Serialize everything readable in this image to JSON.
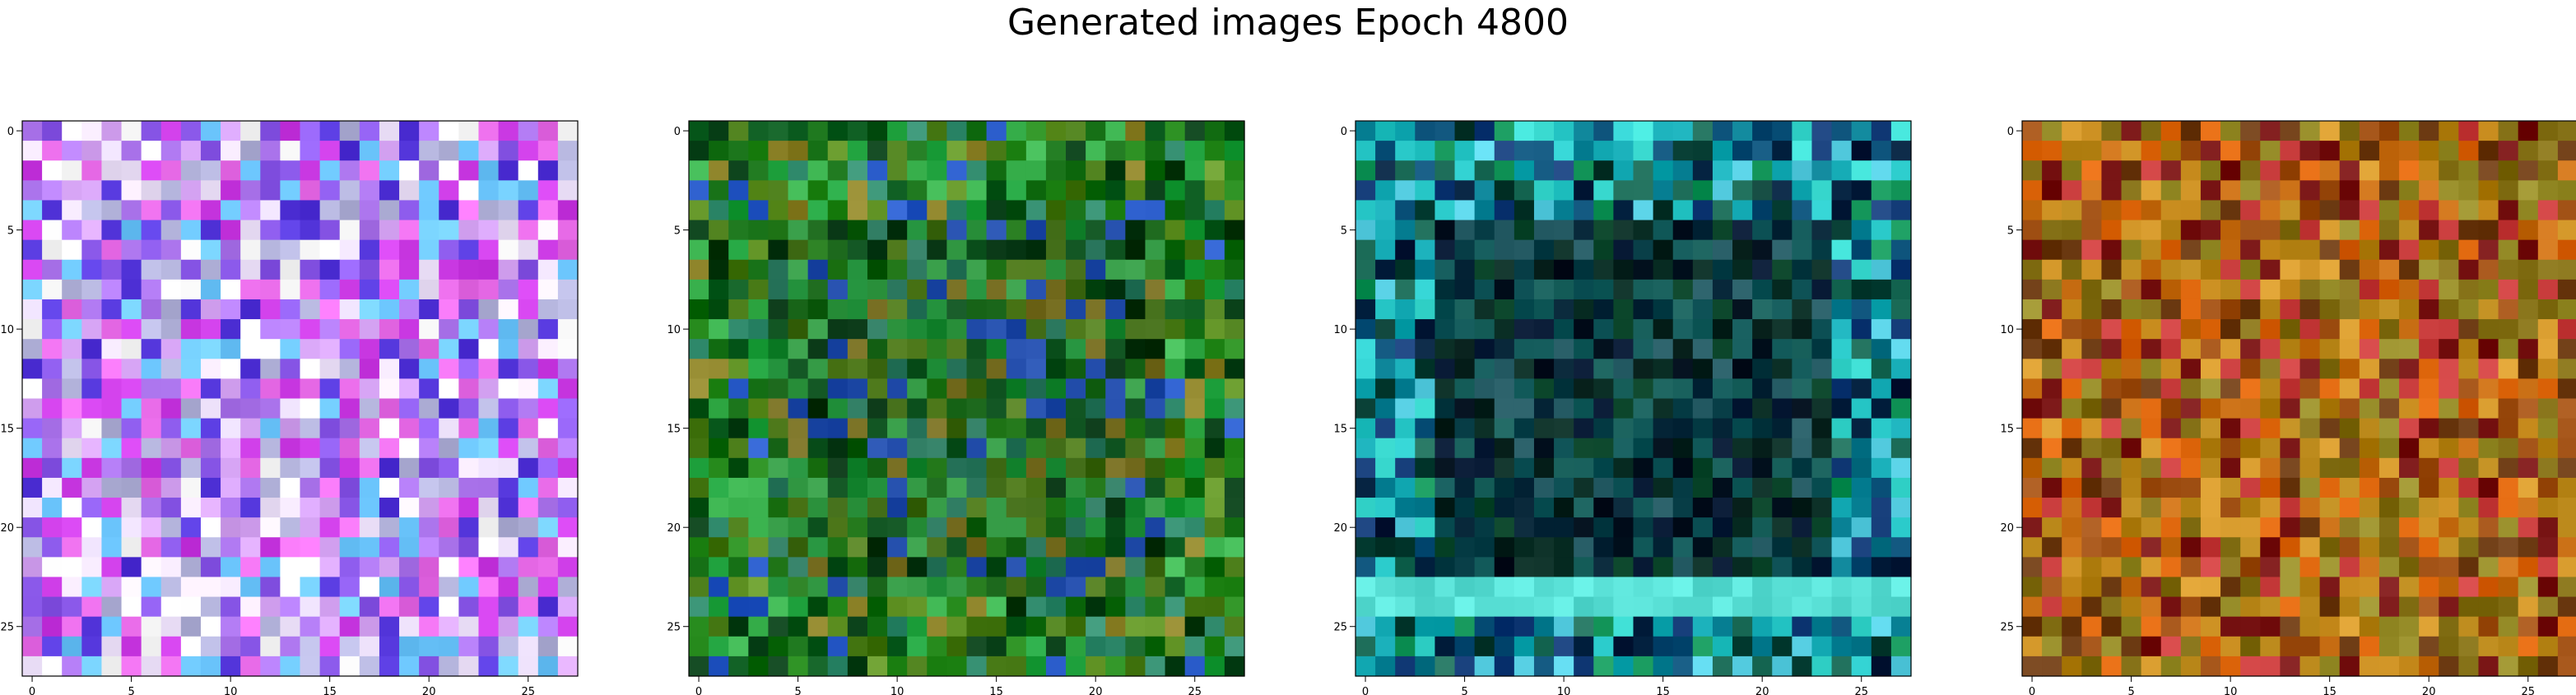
{
  "figure": {
    "title": "Generated images Epoch 4800"
  },
  "chart_data": [
    {
      "type": "heatmap",
      "palette": "violet",
      "seed": 11,
      "mode": "noise",
      "xticks": [
        "0",
        "5",
        "10",
        "15",
        "20",
        "25"
      ],
      "yticks": [
        "0",
        "5",
        "10",
        "15",
        "20",
        "25"
      ],
      "xlim": [
        -0.5,
        27.5
      ],
      "ylim": [
        27.5,
        -0.5
      ],
      "grid": false
    },
    {
      "type": "heatmap",
      "palette": "green",
      "seed": 23,
      "mode": "frame",
      "xticks": [
        "0",
        "5",
        "10",
        "15",
        "20",
        "25"
      ],
      "yticks": [
        "0",
        "5",
        "10",
        "15",
        "20",
        "25"
      ],
      "xlim": [
        -0.5,
        27.5
      ],
      "ylim": [
        27.5,
        -0.5
      ],
      "grid": false
    },
    {
      "type": "heatmap",
      "palette": "teal",
      "seed": 37,
      "mode": "frame",
      "xticks": [
        "0",
        "5",
        "10",
        "15",
        "20",
        "25"
      ],
      "yticks": [
        "0",
        "5",
        "10",
        "15",
        "20",
        "25"
      ],
      "xlim": [
        -0.5,
        27.5
      ],
      "ylim": [
        27.5,
        -0.5
      ],
      "grid": false
    },
    {
      "type": "heatmap",
      "palette": "orange",
      "seed": 51,
      "mode": "noise",
      "xticks": [
        "0",
        "5",
        "10",
        "15",
        "20",
        "25"
      ],
      "yticks": [
        "0",
        "5",
        "10",
        "15",
        "20",
        "25"
      ],
      "xlim": [
        -0.5,
        27.5
      ],
      "ylim": [
        27.5,
        -0.5
      ],
      "grid": false
    }
  ]
}
